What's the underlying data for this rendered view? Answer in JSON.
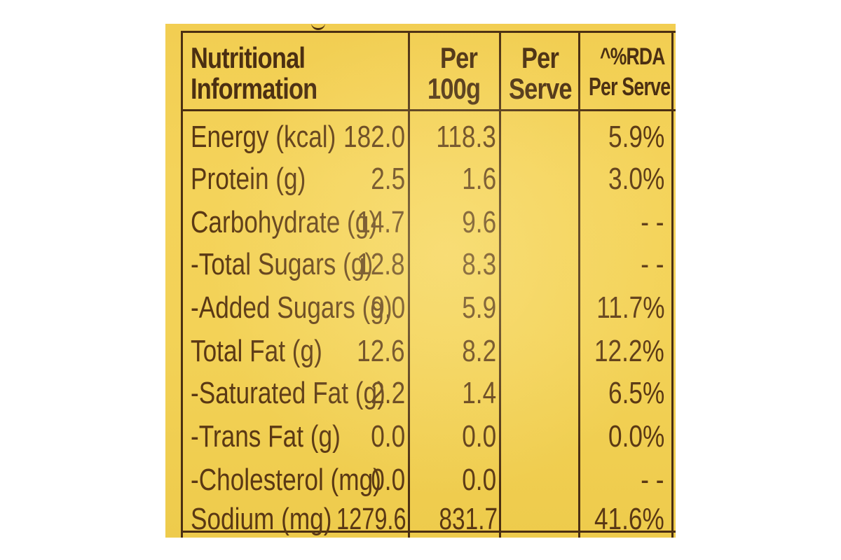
{
  "table": {
    "headers": {
      "nutrient": [
        "Nutritional",
        "Information"
      ],
      "per100g": [
        "Per",
        "100g"
      ],
      "perServe": [
        "Per",
        "Serve"
      ],
      "rda": [
        "^%RDA",
        "Per Serve"
      ]
    },
    "rows": [
      {
        "name": "Energy (kcal)",
        "per100g": "182.0",
        "perServe": "118.3",
        "rda": "5.9%"
      },
      {
        "name": "Protein (g)",
        "per100g": "2.5",
        "perServe": "1.6",
        "rda": "3.0%"
      },
      {
        "name": "Carbohydrate (g)",
        "per100g": "14.7",
        "perServe": "9.6",
        "rda": "- -"
      },
      {
        "name": "-Total Sugars (g)",
        "per100g": "12.8",
        "perServe": "8.3",
        "rda": "- -"
      },
      {
        "name": "-Added Sugars (g)",
        "per100g": "9.0",
        "perServe": "5.9",
        "rda": "11.7%"
      },
      {
        "name": "Total Fat (g)",
        "per100g": "12.6",
        "perServe": "8.2",
        "rda": "12.2%"
      },
      {
        "name": "-Saturated Fat (g)",
        "per100g": "2.2",
        "perServe": "1.4",
        "rda": "6.5%"
      },
      {
        "name": "-Trans Fat (g)",
        "per100g": "0.0",
        "perServe": "0.0",
        "rda": "0.0%"
      },
      {
        "name": "-Cholesterol (mg)",
        "per100g": "0.0",
        "perServe": "0.0",
        "rda": "- -"
      },
      {
        "name": "Sodium (mg)",
        "per100g": "1279.6",
        "perServe": "831.7",
        "rda": "41.6%"
      }
    ]
  },
  "colors": {
    "label_background": "#f3d257",
    "ink": "#4b2f12"
  }
}
